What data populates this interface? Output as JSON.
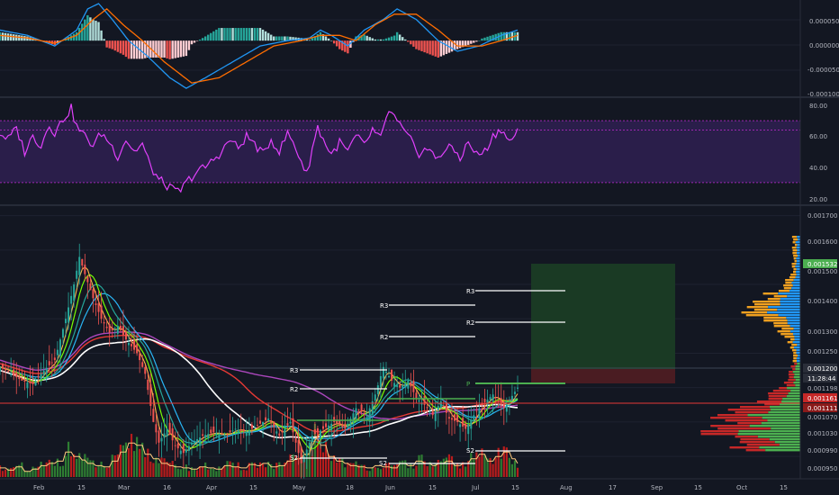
{
  "colors": {
    "background": "#131722",
    "grid": "#1e2230",
    "separator": "#3a3f4e",
    "axis_text": "#b2b5be",
    "up": "#26a69a",
    "down": "#ef5350",
    "macd_line": "#2196f3",
    "signal_line": "#ff6d00",
    "rsi_line": "#e040fb",
    "rsi_band": "#2a1e4a",
    "rsi_level": "#9c27b0",
    "target_zone": "#1a3a24",
    "stop_zone": "#4a1c22",
    "pivot": "#ffffff",
    "pivot_p": "#4caf50",
    "label_green": "#4caf50",
    "label_dark": "#2a2e39",
    "label_red": "#c62828",
    "label_darkred": "#8b1a1a"
  },
  "chart_data": [
    {
      "type": "bar",
      "panel": "MACD histogram with MACD and signal lines",
      "yticks": [
        "0.000050",
        "0.000000",
        "-0.000050",
        "-0.000100"
      ],
      "ylim": [
        -0.0001,
        7e-05
      ],
      "macd": [
        [
          0,
          2e-05
        ],
        [
          10,
          1e-05
        ],
        [
          20,
          -1e-05
        ],
        [
          28,
          2e-05
        ],
        [
          32,
          6e-05
        ],
        [
          36,
          7e-05
        ],
        [
          41,
          4e-05
        ],
        [
          47,
          0.0
        ],
        [
          54,
          -3e-05
        ],
        [
          62,
          -7e-05
        ],
        [
          68,
          -9e-05
        ],
        [
          75,
          -7e-05
        ],
        [
          85,
          -4e-05
        ],
        [
          95,
          -1e-05
        ],
        [
          105,
          0.0
        ],
        [
          113,
          5e-06
        ],
        [
          117,
          2e-05
        ],
        [
          121,
          1e-05
        ],
        [
          127,
          -1e-05
        ],
        [
          133,
          2e-05
        ],
        [
          140,
          4e-05
        ],
        [
          145,
          6e-05
        ],
        [
          152,
          4e-05
        ],
        [
          160,
          0.0
        ],
        [
          167,
          -2e-05
        ],
        [
          175,
          -1e-05
        ],
        [
          183,
          1e-05
        ],
        [
          189,
          2e-05
        ]
      ],
      "signal": [
        [
          0,
          1e-05
        ],
        [
          10,
          5e-06
        ],
        [
          20,
          -5e-06
        ],
        [
          28,
          1e-05
        ],
        [
          34,
          4e-05
        ],
        [
          39,
          6e-05
        ],
        [
          45,
          3e-05
        ],
        [
          52,
          0.0
        ],
        [
          60,
          -4e-05
        ],
        [
          70,
          -8e-05
        ],
        [
          80,
          -7e-05
        ],
        [
          90,
          -4e-05
        ],
        [
          100,
          -1e-05
        ],
        [
          110,
          0.0
        ],
        [
          117,
          1e-05
        ],
        [
          124,
          1e-05
        ],
        [
          130,
          0.0
        ],
        [
          137,
          3e-05
        ],
        [
          144,
          5e-05
        ],
        [
          152,
          5e-05
        ],
        [
          160,
          2e-05
        ],
        [
          167,
          -1e-05
        ],
        [
          176,
          -1e-05
        ],
        [
          183,
          0.0
        ],
        [
          189,
          1e-05
        ]
      ]
    },
    {
      "type": "line",
      "panel": "RSI",
      "yticks": [
        "80.00",
        "60.00",
        "40.00",
        "20.00"
      ],
      "ylim": [
        20,
        80
      ],
      "upper_level": 70,
      "lower_level": 30,
      "mid_level": 64,
      "values": [
        [
          0,
          62
        ],
        [
          3,
          58
        ],
        [
          6,
          65
        ],
        [
          9,
          50
        ],
        [
          12,
          60
        ],
        [
          15,
          54
        ],
        [
          18,
          68
        ],
        [
          20,
          62
        ],
        [
          23,
          71
        ],
        [
          26,
          78
        ],
        [
          28,
          66
        ],
        [
          31,
          60
        ],
        [
          34,
          54
        ],
        [
          37,
          62
        ],
        [
          40,
          56
        ],
        [
          43,
          47
        ],
        [
          46,
          58
        ],
        [
          49,
          50
        ],
        [
          52,
          55
        ],
        [
          55,
          40
        ],
        [
          58,
          32
        ],
        [
          61,
          28
        ],
        [
          64,
          24
        ],
        [
          66,
          25
        ],
        [
          69,
          32
        ],
        [
          72,
          37
        ],
        [
          75,
          40
        ],
        [
          78,
          45
        ],
        [
          81,
          50
        ],
        [
          84,
          58
        ],
        [
          87,
          52
        ],
        [
          90,
          60
        ],
        [
          93,
          55
        ],
        [
          96,
          48
        ],
        [
          99,
          58
        ],
        [
          102,
          50
        ],
        [
          105,
          62
        ],
        [
          107,
          56
        ],
        [
          110,
          44
        ],
        [
          112,
          35
        ],
        [
          114,
          52
        ],
        [
          116,
          66
        ],
        [
          118,
          58
        ],
        [
          121,
          48
        ],
        [
          124,
          56
        ],
        [
          127,
          50
        ],
        [
          130,
          60
        ],
        [
          133,
          54
        ],
        [
          136,
          64
        ],
        [
          139,
          58
        ],
        [
          142,
          77
        ],
        [
          144,
          72
        ],
        [
          147,
          64
        ],
        [
          150,
          57
        ],
        [
          153,
          49
        ],
        [
          156,
          52
        ],
        [
          159,
          46
        ],
        [
          162,
          50
        ],
        [
          165,
          53
        ],
        [
          168,
          46
        ],
        [
          171,
          56
        ],
        [
          174,
          48
        ],
        [
          177,
          50
        ],
        [
          180,
          60
        ],
        [
          183,
          65
        ],
        [
          186,
          56
        ],
        [
          189,
          64
        ]
      ]
    },
    {
      "type": "bar",
      "panel": "Price (candlesticks, moving averages, pivots, volume, volume profile)",
      "xticks": [
        "Feb",
        "15",
        "Mar",
        "16",
        "Apr",
        "15",
        "May",
        "18",
        "Jun",
        "15",
        "Jul",
        "15",
        "Aug",
        "17",
        "Sep",
        "15",
        "Oct",
        "15"
      ],
      "yticks": [
        "0.001700",
        "0.001600",
        "0.001500",
        "0.001400",
        "0.001300",
        "0.001250",
        "0.001198",
        "0.001070",
        "0.001030",
        "0.000990",
        "0.000950"
      ],
      "ylim": [
        0.00094,
        0.00172
      ],
      "price_labels": {
        "last": "0.001532",
        "current": "0.001200",
        "countdown": "11:28:44",
        "level_a": "0.001198",
        "level_b": "0.001161",
        "level_c": "0.001111"
      },
      "close": [
        [
          0,
          0.00126
        ],
        [
          4,
          0.00124
        ],
        [
          8,
          0.00122
        ],
        [
          12,
          0.00121
        ],
        [
          16,
          0.00125
        ],
        [
          20,
          0.00128
        ],
        [
          24,
          0.0014
        ],
        [
          27,
          0.0015
        ],
        [
          29,
          0.00158
        ],
        [
          31,
          0.00153
        ],
        [
          34,
          0.00146
        ],
        [
          37,
          0.0014
        ],
        [
          40,
          0.00136
        ],
        [
          43,
          0.00138
        ],
        [
          46,
          0.00134
        ],
        [
          50,
          0.0013
        ],
        [
          53,
          0.00124
        ],
        [
          56,
          0.0011
        ],
        [
          58,
          0.00104
        ],
        [
          61,
          0.00108
        ],
        [
          64,
          0.00103
        ],
        [
          67,
          0.00101
        ],
        [
          70,
          0.00104
        ],
        [
          74,
          0.00106
        ],
        [
          78,
          0.00107
        ],
        [
          82,
          0.00106
        ],
        [
          86,
          0.00108
        ],
        [
          90,
          0.00107
        ],
        [
          94,
          0.00109
        ],
        [
          98,
          0.00111
        ],
        [
          102,
          0.00106
        ],
        [
          106,
          0.0011
        ],
        [
          110,
          0.00098
        ],
        [
          114,
          0.00106
        ],
        [
          118,
          0.00108
        ],
        [
          122,
          0.0011
        ],
        [
          126,
          0.00108
        ],
        [
          130,
          0.00114
        ],
        [
          134,
          0.00112
        ],
        [
          137,
          0.00118
        ],
        [
          140,
          0.00126
        ],
        [
          143,
          0.00122
        ],
        [
          146,
          0.0012
        ],
        [
          149,
          0.00122
        ],
        [
          152,
          0.00117
        ],
        [
          155,
          0.00115
        ],
        [
          158,
          0.00112
        ],
        [
          161,
          0.00116
        ],
        [
          164,
          0.00111
        ],
        [
          167,
          0.0011
        ],
        [
          170,
          0.00108
        ],
        [
          173,
          0.00112
        ],
        [
          176,
          0.00115
        ],
        [
          180,
          0.00118
        ],
        [
          184,
          0.00114
        ],
        [
          189,
          0.0012
        ]
      ],
      "volume": [
        8,
        6,
        9,
        5,
        7,
        10,
        12,
        14,
        22,
        18,
        15,
        12,
        10,
        9,
        14,
        22,
        30,
        28,
        20,
        16,
        12,
        10,
        9,
        8,
        7,
        9,
        8,
        7,
        10,
        9,
        8,
        11,
        10,
        12,
        9,
        10,
        14,
        16,
        20,
        34,
        28,
        18,
        14,
        12,
        10,
        9,
        8,
        10,
        9,
        8,
        12,
        10,
        14,
        12,
        10,
        12,
        14,
        10,
        12,
        16,
        20,
        14,
        18,
        22,
        16,
        12
      ]
    },
    {
      "type": "table",
      "panel": "Pivot points",
      "labels": [
        "R3",
        "R2",
        "R3",
        "R2",
        "S2",
        "S2",
        "R3",
        "R2",
        "P",
        "S2"
      ]
    }
  ]
}
